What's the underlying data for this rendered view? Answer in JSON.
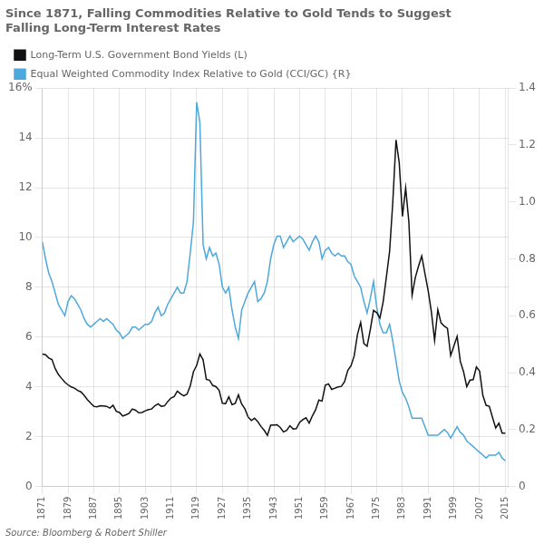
{
  "chart_data": {
    "type": "line",
    "title": "Since 1871, Falling Commodities Relative to Gold Tends to Suggest\nFalling Long-Term Interest Rates",
    "annotations": [
      "Source: Bloomberg & Robert Shiller"
    ],
    "legend": "top left",
    "grid": true,
    "x": [
      1871,
      1872,
      1873,
      1874,
      1875,
      1876,
      1877,
      1878,
      1879,
      1880,
      1881,
      1882,
      1883,
      1884,
      1885,
      1886,
      1887,
      1888,
      1889,
      1890,
      1891,
      1892,
      1893,
      1894,
      1895,
      1896,
      1897,
      1898,
      1899,
      1900,
      1901,
      1902,
      1903,
      1904,
      1905,
      1906,
      1907,
      1908,
      1909,
      1910,
      1911,
      1912,
      1913,
      1914,
      1915,
      1916,
      1917,
      1918,
      1919,
      1920,
      1921,
      1922,
      1923,
      1924,
      1925,
      1926,
      1927,
      1928,
      1929,
      1930,
      1931,
      1932,
      1933,
      1934,
      1935,
      1936,
      1937,
      1938,
      1939,
      1940,
      1941,
      1942,
      1943,
      1944,
      1945,
      1946,
      1947,
      1948,
      1949,
      1950,
      1951,
      1952,
      1953,
      1954,
      1955,
      1956,
      1957,
      1958,
      1959,
      1960,
      1961,
      1962,
      1963,
      1964,
      1965,
      1966,
      1967,
      1968,
      1969,
      1970,
      1971,
      1972,
      1973,
      1974,
      1975,
      1976,
      1977,
      1978,
      1979,
      1980,
      1981,
      1982,
      1983,
      1984,
      1985,
      1986,
      1987,
      1988,
      1989,
      1990,
      1991,
      1992,
      1993,
      1994,
      1995,
      1996,
      1997,
      1998,
      1999,
      2000,
      2001,
      2002,
      2003,
      2004,
      2005,
      2006,
      2007,
      2008,
      2009,
      2010,
      2011,
      2012,
      2013,
      2014,
      2015
    ],
    "xlim": [
      1871,
      2016
    ],
    "xticks": [
      1871,
      1879,
      1887,
      1895,
      1903,
      1911,
      1919,
      1927,
      1935,
      1943,
      1951,
      1959,
      1967,
      1975,
      1983,
      1991,
      1999,
      2007,
      2015
    ],
    "ylim": [
      0,
      16
    ],
    "yticks": [
      0,
      2,
      4,
      6,
      8,
      10,
      12,
      14,
      {
        "value": 16,
        "label": "16%"
      }
    ],
    "y2lim": [
      0,
      1.4
    ],
    "y2ticks": [
      0,
      0.2,
      0.4,
      0.6,
      0.8,
      {
        "value": 1,
        "label": "1.0"
      },
      1.2,
      1.4
    ],
    "series": [
      {
        "name": "Long-Term U.S. Government Bond Yields (L)",
        "color": "#111111",
        "axis": "y",
        "values": [
          5.32,
          5.29,
          5.16,
          5.1,
          4.74,
          4.5,
          4.34,
          4.19,
          4.08,
          4.0,
          3.95,
          3.86,
          3.8,
          3.66,
          3.49,
          3.35,
          3.22,
          3.2,
          3.24,
          3.23,
          3.22,
          3.15,
          3.26,
          3.02,
          2.97,
          2.83,
          2.88,
          2.94,
          3.11,
          3.06,
          2.96,
          2.97,
          3.04,
          3.09,
          3.11,
          3.24,
          3.32,
          3.22,
          3.24,
          3.41,
          3.55,
          3.61,
          3.83,
          3.72,
          3.64,
          3.71,
          4.03,
          4.61,
          4.86,
          5.32,
          5.09,
          4.3,
          4.27,
          4.06,
          4.01,
          3.86,
          3.34,
          3.33,
          3.6,
          3.29,
          3.34,
          3.68,
          3.31,
          3.12,
          2.79,
          2.65,
          2.74,
          2.61,
          2.41,
          2.26,
          2.05,
          2.46,
          2.47,
          2.48,
          2.37,
          2.19,
          2.25,
          2.44,
          2.31,
          2.32,
          2.57,
          2.68,
          2.76,
          2.55,
          2.84,
          3.08,
          3.47,
          3.43,
          4.07,
          4.12,
          3.9,
          3.95,
          4.0,
          4.02,
          4.21,
          4.66,
          4.85,
          5.25,
          6.1,
          6.59,
          5.74,
          5.63,
          6.3,
          7.07,
          6.98,
          6.77,
          7.42,
          8.41,
          9.44,
          11.43,
          13.92,
          13.0,
          10.85,
          11.99,
          10.62,
          7.68,
          8.39,
          8.85,
          9.26,
          8.55,
          7.86,
          7.01,
          5.87,
          7.1,
          6.57,
          6.44,
          6.35,
          5.26,
          5.65,
          6.03,
          5.02,
          4.61,
          4.01,
          4.27,
          4.29,
          4.8,
          4.63,
          3.66,
          3.26,
          3.22,
          2.78,
          2.35,
          2.54,
          2.14,
          2.14
        ]
      },
      {
        "name": "Equal Weighted Commodity Index Relative to Gold (CCI/GC) {R}",
        "color": "#4da8db",
        "axis": "y2",
        "values": [
          0.86,
          0.8,
          0.75,
          0.72,
          0.68,
          0.64,
          0.62,
          0.6,
          0.65,
          0.67,
          0.66,
          0.64,
          0.62,
          0.59,
          0.57,
          0.56,
          0.57,
          0.58,
          0.59,
          0.58,
          0.59,
          0.58,
          0.57,
          0.55,
          0.54,
          0.52,
          0.53,
          0.54,
          0.56,
          0.56,
          0.55,
          0.56,
          0.57,
          0.57,
          0.58,
          0.61,
          0.63,
          0.6,
          0.61,
          0.64,
          0.66,
          0.68,
          0.7,
          0.68,
          0.68,
          0.72,
          0.82,
          0.93,
          1.35,
          1.28,
          0.85,
          0.8,
          0.84,
          0.81,
          0.82,
          0.78,
          0.7,
          0.68,
          0.7,
          0.62,
          0.56,
          0.52,
          0.62,
          0.65,
          0.68,
          0.7,
          0.72,
          0.65,
          0.66,
          0.68,
          0.72,
          0.8,
          0.85,
          0.88,
          0.88,
          0.84,
          0.86,
          0.88,
          0.86,
          0.87,
          0.88,
          0.87,
          0.85,
          0.83,
          0.86,
          0.88,
          0.86,
          0.8,
          0.83,
          0.84,
          0.82,
          0.81,
          0.82,
          0.81,
          0.81,
          0.79,
          0.78,
          0.74,
          0.72,
          0.7,
          0.65,
          0.61,
          0.66,
          0.72,
          0.63,
          0.57,
          0.54,
          0.54,
          0.57,
          0.51,
          0.44,
          0.37,
          0.33,
          0.31,
          0.28,
          0.24,
          0.24,
          0.24,
          0.24,
          0.21,
          0.18,
          0.18,
          0.18,
          0.18,
          0.19,
          0.2,
          0.19,
          0.17,
          0.19,
          0.21,
          0.19,
          0.18,
          0.16,
          0.15,
          0.14,
          0.13,
          0.12,
          0.11,
          0.1,
          0.11,
          0.11,
          0.11,
          0.12,
          0.1,
          0.09
        ]
      }
    ]
  }
}
